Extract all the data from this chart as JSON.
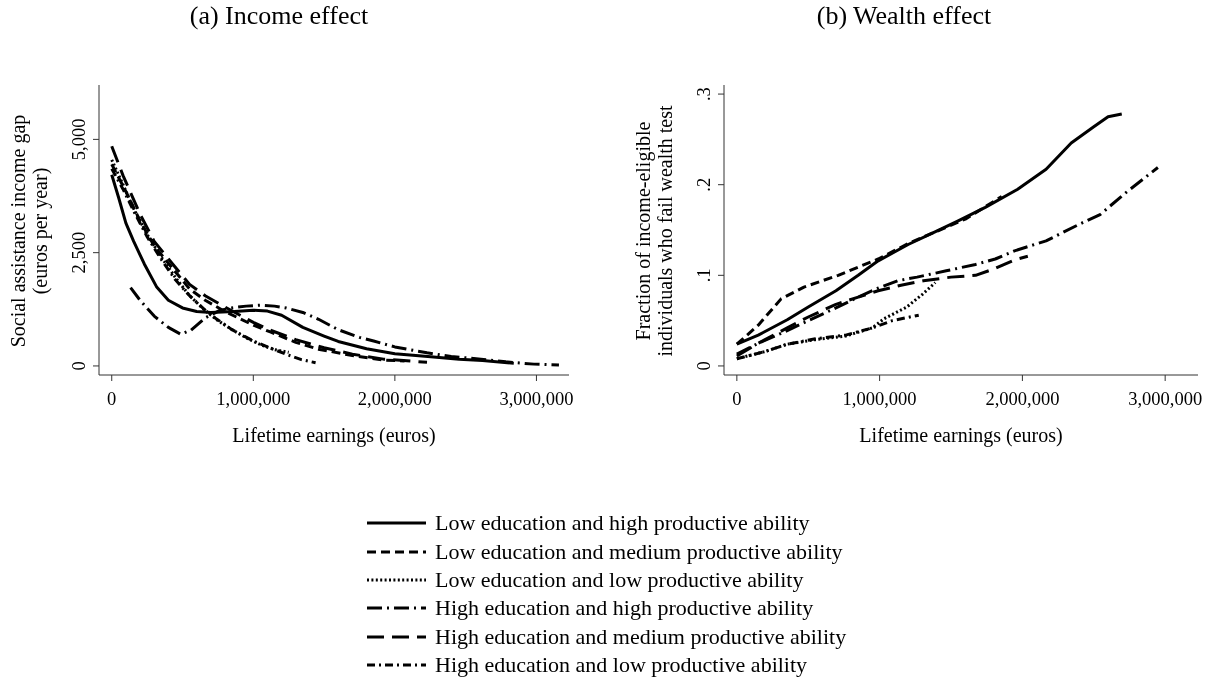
{
  "chart_data": [
    {
      "type": "line",
      "title": "(a) Income effect",
      "xlabel": "Lifetime earnings (euros)",
      "ylabel": "Social assistance income gap\n(euros per year)",
      "xlim": [
        -90000,
        3230000
      ],
      "ylim": [
        -200,
        6200
      ],
      "xticks": [
        0,
        {
          "value": 1000000,
          "label": "1,000,000"
        },
        {
          "value": 2000000,
          "label": "2,000,000"
        },
        {
          "value": 3000000,
          "label": "3,000,000"
        }
      ],
      "yticks": [
        0,
        {
          "value": 2500,
          "label": "2,500"
        },
        {
          "value": 5000,
          "label": "5,000"
        }
      ],
      "legend": "bottom",
      "series": [
        {
          "name": "Low education and high productive ability",
          "color": "#000000",
          "line_style": "solid",
          "x": [
            0,
            50000,
            100000,
            155000,
            230000,
            316000,
            400000,
            500000,
            600000,
            700000,
            866000,
            1000000,
            1100000,
            1200000,
            1350000,
            1500000,
            1600000,
            1800000,
            2000000,
            2233000,
            2454000,
            2619000,
            2840000
          ],
          "values": [
            4220,
            3700,
            3150,
            2750,
            2250,
            1750,
            1450,
            1280,
            1200,
            1180,
            1200,
            1230,
            1210,
            1120,
            850,
            660,
            540,
            380,
            270,
            210,
            150,
            120,
            60
          ]
        },
        {
          "name": "Low education and medium productive ability",
          "color": "#000000",
          "line_style": "dashed",
          "x": [
            0,
            100000,
            200000,
            300000,
            430000,
            550000,
            660000,
            800000,
            900000,
            1000000,
            1120000,
            1300000,
            1460000,
            1700000,
            1920000,
            2068000
          ],
          "values": [
            4450,
            3850,
            3200,
            2650,
            2150,
            1700,
            1450,
            1200,
            1050,
            900,
            750,
            520,
            370,
            230,
            130,
            110
          ]
        },
        {
          "name": "Low education and low productive ability",
          "color": "#000000",
          "line_style": "dotted",
          "x": [
            0,
            80000,
            150000,
            250000,
            350000,
            450000,
            550000,
            650000,
            750000,
            850000,
            950000,
            1050000,
            1150000,
            1250000
          ],
          "values": [
            4550,
            4000,
            3500,
            2900,
            2400,
            1950,
            1550,
            1250,
            1000,
            800,
            620,
            470,
            360,
            300
          ]
        },
        {
          "name": "High education and high productive ability",
          "color": "#000000",
          "line_style": "longdashdot",
          "x": [
            133000,
            200000,
            300000,
            400000,
            488000,
            560000,
            660000,
            760000,
            843000,
            950000,
            1049000,
            1150000,
            1232000,
            1350000,
            1461000,
            1600000,
            1750000,
            1850000,
            2000000,
            2227000,
            2398000,
            2608000,
            2784000,
            2982000,
            3159000
          ],
          "values": [
            1730,
            1450,
            1100,
            850,
            700,
            790,
            1060,
            1220,
            1280,
            1320,
            1340,
            1320,
            1280,
            1180,
            1030,
            800,
            630,
            550,
            420,
            290,
            210,
            150,
            90,
            40,
            20
          ]
        },
        {
          "name": "High education and medium productive ability",
          "color": "#000000",
          "line_style": "longdash",
          "x": [
            0,
            80000,
            200000,
            300000,
            430000,
            550000,
            660000,
            800000,
            900000,
            1000000,
            1120000,
            1300000,
            1500000,
            1700000,
            1920000,
            2227000
          ],
          "values": [
            4850,
            4200,
            3350,
            2750,
            2250,
            1800,
            1550,
            1300,
            1130,
            960,
            790,
            580,
            400,
            260,
            150,
            80
          ]
        },
        {
          "name": "High education and low productive ability",
          "color": "#000000",
          "line_style": "dashdot",
          "x": [
            0,
            80000,
            150000,
            250000,
            350000,
            450000,
            550000,
            650000,
            730000,
            850000,
            1000000,
            1100000,
            1230000,
            1340000,
            1440000
          ],
          "values": [
            4350,
            3900,
            3450,
            2850,
            2350,
            1900,
            1550,
            1260,
            1060,
            800,
            550,
            420,
            260,
            140,
            70
          ]
        }
      ]
    },
    {
      "type": "line",
      "title": "(b) Wealth effect",
      "xlabel": "Lifetime earnings (euros)",
      "ylabel": "Fraction of income-eligible\nindividuals who fail wealth test",
      "xlim": [
        -90000,
        3230000
      ],
      "ylim": [
        -0.01,
        0.31
      ],
      "xticks": [
        0,
        {
          "value": 1000000,
          "label": "1,000,000"
        },
        {
          "value": 2000000,
          "label": "2,000,000"
        },
        {
          "value": 3000000,
          "label": "3,000,000"
        }
      ],
      "yticks": [
        0,
        {
          "value": 0.1,
          "label": ".1"
        },
        {
          "value": 0.2,
          "label": ".2"
        },
        {
          "value": 0.3,
          "label": ".3"
        }
      ],
      "series": [
        {
          "color": "#000000",
          "line_style": "solid",
          "x": [
            0,
            150000,
            353000,
            500000,
            694000,
            850000,
            990000,
            1200000,
            1377000,
            1550000,
            1740000,
            1967000,
            2166000,
            2342000,
            2500000,
            2600000,
            2696000
          ],
          "values": [
            0.024,
            0.034,
            0.051,
            0.065,
            0.083,
            0.1,
            0.116,
            0.134,
            0.147,
            0.16,
            0.175,
            0.195,
            0.217,
            0.246,
            0.264,
            0.275,
            0.278
          ]
        },
        {
          "color": "#000000",
          "line_style": "dashed",
          "x": [
            0,
            150000,
            310000,
            470000,
            710000,
            990000,
            1200000,
            1377000,
            1600000,
            1855000
          ],
          "values": [
            0.024,
            0.045,
            0.074,
            0.087,
            0.1,
            0.118,
            0.135,
            0.147,
            0.162,
            0.187
          ]
        },
        {
          "color": "#000000",
          "line_style": "dotted",
          "x": [
            0,
            200000,
            353000,
            550000,
            762000,
            950000,
            1030000,
            1190000,
            1300000,
            1390000
          ],
          "values": [
            0.008,
            0.016,
            0.024,
            0.029,
            0.033,
            0.042,
            0.052,
            0.065,
            0.079,
            0.092
          ]
        },
        {
          "color": "#000000",
          "line_style": "longdashdot",
          "x": [
            0,
            150000,
            353000,
            500000,
            694000,
            850000,
            990000,
            1126000,
            1262000,
            1467000,
            1672000,
            1810000,
            1945000,
            2166000,
            2394000,
            2544000,
            2723000,
            2949000
          ],
          "values": [
            0.013,
            0.025,
            0.039,
            0.05,
            0.064,
            0.076,
            0.086,
            0.094,
            0.098,
            0.105,
            0.112,
            0.118,
            0.127,
            0.138,
            0.156,
            0.167,
            0.191,
            0.219
          ]
        },
        {
          "color": "#000000",
          "line_style": "longdash",
          "x": [
            0,
            150000,
            353000,
            500000,
            694000,
            850000,
            990000,
            1150000,
            1307000,
            1500000,
            1672000,
            1800000,
            1945000,
            2038000
          ],
          "values": [
            0.011,
            0.025,
            0.042,
            0.054,
            0.068,
            0.076,
            0.083,
            0.089,
            0.094,
            0.098,
            0.1,
            0.107,
            0.117,
            0.121
          ]
        },
        {
          "color": "#000000",
          "line_style": "dashdot",
          "x": [
            0,
            200000,
            353000,
            550000,
            762000,
            950000,
            1090000,
            1180000,
            1274000
          ],
          "values": [
            0.008,
            0.016,
            0.024,
            0.03,
            0.034,
            0.042,
            0.05,
            0.053,
            0.056
          ]
        }
      ]
    }
  ]
}
